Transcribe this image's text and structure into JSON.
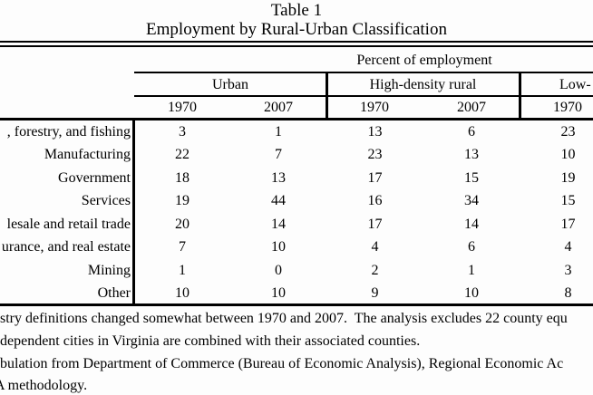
{
  "title": {
    "line1": "Table 1",
    "line2": "Employment by Rural-Urban Classification"
  },
  "table": {
    "spanner": "Percent of employment",
    "group_headers": {
      "urban": "Urban",
      "high_density": "High-density rural",
      "low_density": "Low-"
    },
    "year_headers": [
      "1970",
      "2007",
      "1970",
      "2007",
      "1970"
    ],
    "rows": [
      {
        "label": ", forestry, and fishing",
        "values": [
          "3",
          "1",
          "13",
          "6",
          "23"
        ]
      },
      {
        "label": "Manufacturing",
        "values": [
          "22",
          "7",
          "23",
          "13",
          "10"
        ]
      },
      {
        "label": "Government",
        "values": [
          "18",
          "13",
          "17",
          "15",
          "19"
        ]
      },
      {
        "label": "Services",
        "values": [
          "19",
          "44",
          "16",
          "34",
          "15"
        ]
      },
      {
        "label": "lesale and retail trade",
        "values": [
          "20",
          "14",
          "17",
          "14",
          "17"
        ]
      },
      {
        "label": "urance, and real estate",
        "values": [
          "7",
          "10",
          "4",
          "6",
          "4"
        ]
      },
      {
        "label": "Mining",
        "values": [
          "1",
          "0",
          "2",
          "1",
          "3"
        ]
      },
      {
        "label": "Other",
        "values": [
          "10",
          "10",
          "9",
          "10",
          "8"
        ]
      }
    ]
  },
  "notes": {
    "line1": "stry definitions changed somewhat between 1970 and 2007.  The analysis excludes 22 county equ",
    "line2": "dependent cities in Virginia are combined with their associated counties.",
    "line3": "bulation from Department of Commerce (Bureau of Economic Analysis), Regional Economic Ac",
    "line4": "A methodology."
  },
  "colors": {
    "background": "#fdfdfd",
    "text": "#000000",
    "rule": "#000000"
  }
}
